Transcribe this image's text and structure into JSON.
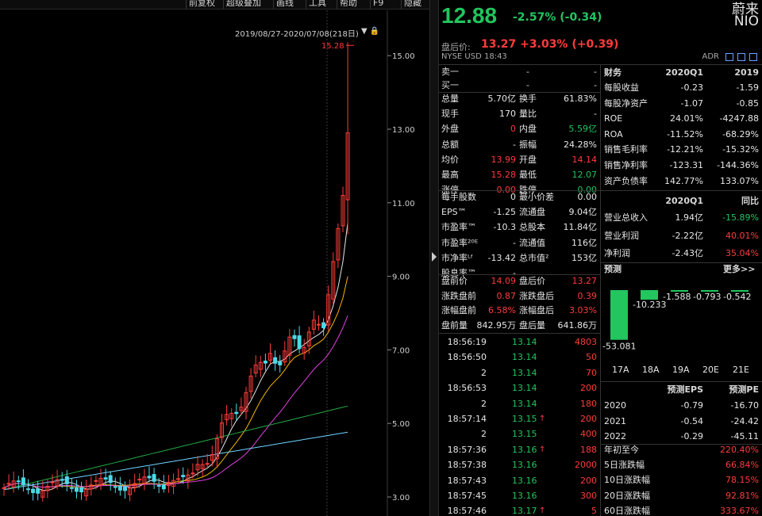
{
  "toolbar": {
    "items": [
      "前复权",
      "超级叠加",
      "画线",
      "工具",
      "帮助",
      "F9",
      "隐藏"
    ]
  },
  "chart": {
    "date_range": "2019/08/27-2020/07/08(218日)",
    "y_ticks": [
      "15.00",
      "13.00",
      "11.00",
      "9.00",
      "7.00",
      "5.00",
      "3.00"
    ],
    "high_label": "15.28"
  },
  "quote": {
    "price": "12.88",
    "change": "-2.57% (-0.34)",
    "name": "蔚来",
    "symbol": "NIO",
    "after_hours_label": "盘后价:",
    "after_hours_value": "13.27 +3.03% (+0.39)",
    "market": "NYSE  USD  18:43",
    "adr": "ADR"
  },
  "orderbook": {
    "rows": [
      {
        "label": "卖一",
        "a": "-",
        "b": "-"
      },
      {
        "label": "买一",
        "a": "-",
        "b": "-"
      }
    ]
  },
  "stats": [
    [
      "总量",
      "5.70亿",
      "换手",
      "61.83%"
    ],
    [
      "现手",
      "170",
      "量比",
      "-"
    ],
    [
      "外盘",
      "0",
      "内盘",
      "5.59亿"
    ],
    [
      "总额",
      "-",
      "振幅",
      "24.28%"
    ],
    [
      "均价",
      "13.99",
      "开盘",
      "14.14"
    ],
    [
      "最高",
      "15.28",
      "最低",
      "12.07"
    ],
    [
      "涨停",
      "0.00",
      "跌停",
      "0.00"
    ]
  ],
  "stats2": [
    [
      "每手股数",
      "0",
      "最小价差",
      "0.00"
    ],
    [
      "EPS™",
      "-1.25",
      "流通盘",
      "9.04亿"
    ],
    [
      "市盈率™",
      "-10.3",
      "总股本",
      "11.84亿"
    ],
    [
      "市盈率²⁰ᴱ",
      "-",
      "流通值",
      "116亿"
    ],
    [
      "市净率ᴸᶠ",
      "-13.42",
      "总市值²",
      "153亿"
    ],
    [
      "股息率™",
      "-",
      "",
      ""
    ]
  ],
  "premarket": [
    [
      "盘前价",
      "14.09",
      "盘后价",
      "13.27"
    ],
    [
      "涨跌盘前",
      "0.87",
      "涨跌盘后",
      "0.39"
    ],
    [
      "涨幅盘前",
      "6.58%",
      "涨幅盘后",
      "3.03%"
    ],
    [
      "盘前量",
      "842.95万",
      "盘后量",
      "641.86万"
    ]
  ],
  "ticks": [
    {
      "time": "18:56:19",
      "price": "13.14",
      "vol": "4803",
      "up": false
    },
    {
      "time": "18:56:50",
      "price": "13.14",
      "vol": "50",
      "up": false
    },
    {
      "time": "2",
      "price": "13.14",
      "vol": "70",
      "up": false
    },
    {
      "time": "18:56:53",
      "price": "13.14",
      "vol": "200",
      "up": false
    },
    {
      "time": "2",
      "price": "13.14",
      "vol": "180",
      "up": false
    },
    {
      "time": "18:57:14",
      "price": "13.15",
      "vol": "200",
      "up": true
    },
    {
      "time": "2",
      "price": "13.15",
      "vol": "400",
      "up": false
    },
    {
      "time": "18:57:36",
      "price": "13.16",
      "vol": "188",
      "up": true
    },
    {
      "time": "18:57:38",
      "price": "13.16",
      "vol": "2000",
      "up": false
    },
    {
      "time": "18:57:43",
      "price": "13.16",
      "vol": "200",
      "up": false
    },
    {
      "time": "18:57:45",
      "price": "13.16",
      "vol": "300",
      "up": false
    },
    {
      "time": "18:57:46",
      "price": "13.17",
      "vol": "5",
      "up": true
    }
  ],
  "finance": {
    "header": [
      "财务",
      "2020Q1",
      "2019"
    ],
    "rows": [
      [
        "每股收益",
        "-0.23",
        "-1.59"
      ],
      [
        "每股净资产",
        "-1.07",
        "-0.85"
      ],
      [
        "ROE",
        "24.01%",
        "-4247.88"
      ],
      [
        "ROA",
        "-11.52%",
        "-68.29%"
      ],
      [
        "销售毛利率",
        "-12.21%",
        "-15.32%"
      ],
      [
        "销售净利率",
        "-123.31",
        "-144.36%"
      ],
      [
        "资产负债率",
        "142.77%",
        "133.07%"
      ]
    ],
    "header2": [
      "",
      "2020Q1",
      "同比"
    ],
    "rows2": [
      [
        "营业总收入",
        "1.94亿",
        "-15.89%"
      ],
      [
        "营业利润",
        "-2.22亿",
        "40.01%"
      ],
      [
        "净利润",
        "-2.43亿",
        "35.04%"
      ]
    ]
  },
  "forecast": {
    "title": "预测",
    "more": "更多>>",
    "bars": [
      {
        "label": "17A",
        "value": -53.081,
        "text": "-53.081"
      },
      {
        "label": "18A",
        "value": -10.233,
        "text": "-10.233"
      },
      {
        "label": "19A",
        "value": -1.588,
        "text": "-1.588"
      },
      {
        "label": "20E",
        "value": -0.793,
        "text": "-0.793"
      },
      {
        "label": "21E",
        "value": -0.542,
        "text": "-0.542"
      }
    ],
    "table_header": [
      "",
      "预测EPS",
      "预测PE"
    ],
    "table": [
      [
        "2020",
        "-0.79",
        "-16.70"
      ],
      [
        "2021",
        "-0.54",
        "-24.42"
      ],
      [
        "2022",
        "-0.29",
        "-45.11"
      ]
    ]
  },
  "returns": [
    [
      "年初至今",
      "220.40%"
    ],
    [
      "5日涨跌幅",
      "66.84%"
    ],
    [
      "10日涨跌幅",
      "78.15%"
    ],
    [
      "20日涨跌幅",
      "92.81%"
    ],
    [
      "60日涨跌幅",
      "333.67%"
    ]
  ],
  "colors": {
    "up": "#ff3b3b",
    "down": "#22c55e",
    "cyan": "#4dd9e8"
  }
}
